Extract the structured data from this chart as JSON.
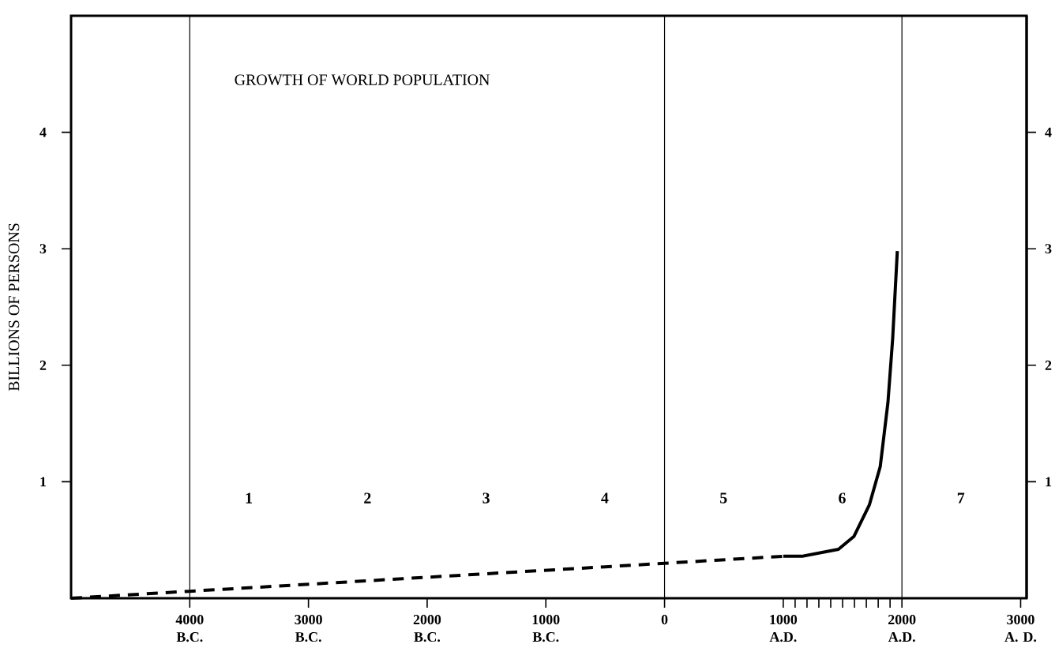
{
  "chart_data": {
    "type": "line",
    "title": "GROWTH OF WORLD POPULATION",
    "ylabel": "BILLIONS OF PERSONS",
    "xlim": [
      -5000,
      3050
    ],
    "ylim": [
      0,
      5
    ],
    "y2lim": [
      0,
      5
    ],
    "xticks": [
      {
        "value": -4000,
        "label": "4000 B.C."
      },
      {
        "value": -3000,
        "label": "3000 B.C."
      },
      {
        "value": -2000,
        "label": "2000 B.C."
      },
      {
        "value": -1000,
        "label": "1000 B.C."
      },
      0,
      {
        "value": 1000,
        "label": "1000 A.D."
      },
      {
        "value": 2000,
        "label": "2000 A.D."
      },
      {
        "value": 3000,
        "label": "3000 A. D."
      },
      {
        "value": 1100,
        "label": null
      },
      {
        "value": 1200,
        "label": null
      },
      {
        "value": 1300,
        "label": null
      },
      {
        "value": 1400,
        "label": null
      },
      {
        "value": 1500,
        "label": null
      },
      {
        "value": 1600,
        "label": null
      },
      {
        "value": 1700,
        "label": null
      },
      {
        "value": 1800,
        "label": null
      },
      {
        "value": 1900,
        "label": null
      }
    ],
    "yticks": [
      1,
      2,
      3,
      4
    ],
    "y2ticks": [
      1,
      2,
      3,
      4
    ],
    "series": [
      {
        "color": "#000000",
        "line_style": "dashed",
        "x": [
          -5000,
          -4000,
          -2000,
          0,
          1000
        ],
        "values": [
          0,
          0.06,
          0.18,
          0.3,
          0.36
        ]
      },
      {
        "color": "#000000",
        "line_style": "solid",
        "x": [
          1000,
          1160,
          1465,
          1595,
          1725,
          1817,
          1882,
          1922,
          1961
        ],
        "values": [
          0.36,
          0.36,
          0.42,
          0.53,
          0.8,
          1.13,
          1.68,
          2.23,
          2.98
        ]
      }
    ],
    "ref_lines": [
      {
        "axis": "x",
        "value": -4000
      },
      {
        "axis": "x",
        "value": 0
      },
      {
        "axis": "x",
        "value": 2000
      }
    ],
    "annotations": [
      "1",
      "2",
      "3",
      "4",
      "5",
      "6",
      "7"
    ],
    "grid": false
  }
}
